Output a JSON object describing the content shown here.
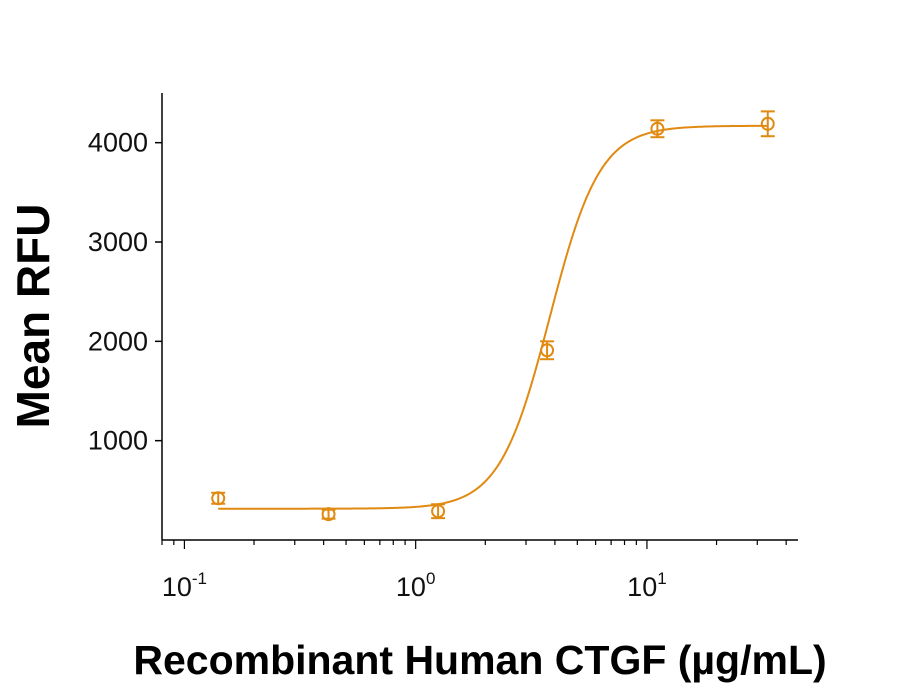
{
  "chart_data": {
    "type": "scatter",
    "xlabel": "Recombinant Human CTGF (µg/mL)",
    "ylabel": "Mean RFU",
    "x_scale": "log",
    "xlim": [
      0.08,
      45
    ],
    "ylim": [
      0,
      4500
    ],
    "yticks": [
      "1000",
      "2000",
      "3000",
      "4000"
    ],
    "yticks_values": [
      1000,
      2000,
      3000,
      4000
    ],
    "xticks": [
      {
        "base": "10",
        "exp": "-1",
        "value": 0.1
      },
      {
        "base": "10",
        "exp": "0",
        "value": 1
      },
      {
        "base": "10",
        "exp": "1",
        "value": 10
      }
    ],
    "grid": false,
    "color": "#E08A12",
    "series": [
      {
        "x": [
          0.14,
          0.42,
          1.25,
          3.7,
          11.1,
          33.3
        ],
        "y": [
          420,
          260,
          290,
          1910,
          4140,
          4190
        ],
        "err": [
          55,
          45,
          70,
          90,
          85,
          125
        ]
      }
    ],
    "fit": {
      "model": "4PL",
      "bottom": 315,
      "top": 4170,
      "ec50": 3.8,
      "hill": 4.0
    }
  }
}
